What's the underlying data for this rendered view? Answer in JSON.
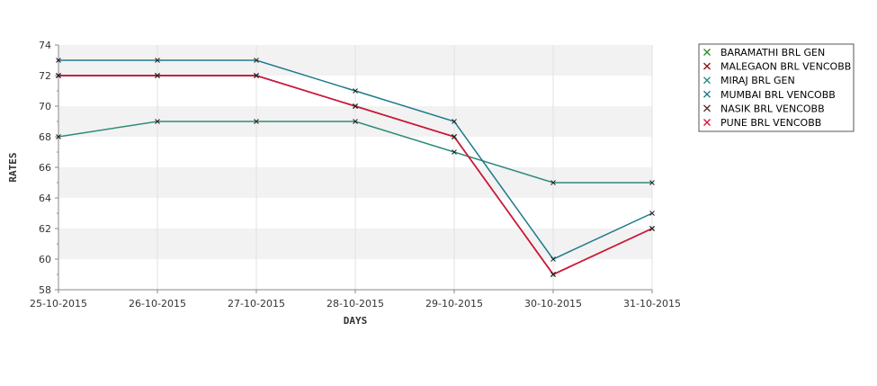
{
  "chart_data": {
    "type": "line",
    "title": "",
    "xlabel": "DAYS",
    "ylabel": "RATES",
    "categories": [
      "25-10-2015",
      "26-10-2015",
      "27-10-2015",
      "28-10-2015",
      "29-10-2015",
      "30-10-2015",
      "31-10-2015"
    ],
    "ylim": [
      58,
      74
    ],
    "yticks": [
      58,
      60,
      62,
      64,
      66,
      68,
      70,
      72,
      74
    ],
    "grid": "horizontal alternating bands",
    "legend_position": "right",
    "series": [
      {
        "name": "BARAMATHI BRL GEN",
        "color": "#2e8b2e",
        "values": [
          72,
          72,
          72,
          70,
          68,
          59,
          62
        ]
      },
      {
        "name": "MALEGAON BRL VENCOBB",
        "color": "#8b1a1a",
        "values": [
          72,
          72,
          72,
          70,
          68,
          59,
          62
        ]
      },
      {
        "name": "MIRAJ BRL GEN",
        "color": "#2e8b7a",
        "values": [
          68,
          69,
          69,
          69,
          67,
          65,
          65
        ]
      },
      {
        "name": "MUMBAI BRL VENCOBB",
        "color": "#1f7a8c",
        "values": [
          73,
          73,
          73,
          71,
          69,
          60,
          63
        ]
      },
      {
        "name": "NASIK BRL VENCOBB",
        "color": "#5a3030",
        "values": [
          72,
          72,
          72,
          70,
          68,
          59,
          62
        ]
      },
      {
        "name": "PUNE BRL VENCOBB",
        "color": "#dc143c",
        "values": [
          72,
          72,
          72,
          70,
          68,
          59,
          62
        ]
      }
    ]
  }
}
